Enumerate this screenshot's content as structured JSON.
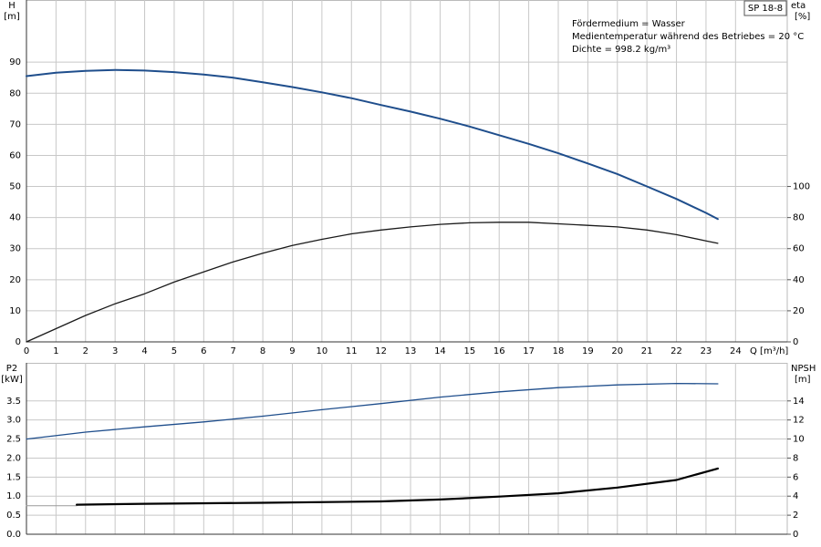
{
  "chart_data": [
    {
      "type": "line",
      "tag": "SP 18-8",
      "annotations": [
        "Fördermedium = Wasser",
        "Medientemperatur während des Betriebes = 20 °C",
        "Dichte = 998.2 kg/m³"
      ],
      "y_label": "H",
      "y_unit": "[m]",
      "y2_label": "eta",
      "y2_unit": "[%]",
      "x_label": "Q [m³/h]",
      "xlim": [
        0,
        25.75
      ],
      "xticks": [
        0,
        1,
        2,
        3,
        4,
        5,
        6,
        7,
        8,
        9,
        10,
        11,
        12,
        13,
        14,
        15,
        16,
        17,
        18,
        19,
        20,
        21,
        22,
        23,
        24
      ],
      "ylim": [
        0,
        110
      ],
      "yticks": [
        0,
        10,
        20,
        30,
        40,
        50,
        60,
        70,
        80,
        90
      ],
      "y2lim": [
        0,
        220
      ],
      "y2ticks": [
        0,
        20,
        40,
        60,
        80,
        100
      ],
      "grid": true,
      "xtick_labels": true,
      "series": [
        {
          "color": "#1f4e8c",
          "width": 2,
          "x": [
            0,
            1,
            2,
            3,
            4,
            5,
            6,
            7,
            8,
            9,
            10,
            11,
            12,
            13,
            14,
            15,
            16,
            17,
            18,
            19,
            20,
            21,
            22,
            23,
            23.4
          ],
          "values": [
            85.5,
            86.6,
            87.2,
            87.5,
            87.3,
            86.8,
            86,
            85,
            83.5,
            82,
            80.3,
            78.4,
            76.2,
            74.1,
            71.8,
            69.3,
            66.5,
            63.7,
            60.7,
            57.4,
            54,
            50,
            46,
            41.5,
            39.5
          ]
        },
        {
          "color": "#1a1a1a",
          "width": 1.3,
          "axis": "y2",
          "x": [
            0,
            1,
            2,
            3,
            4,
            5,
            6,
            7,
            8,
            9,
            10,
            11,
            12,
            13,
            14,
            15,
            16,
            17,
            18,
            19,
            20,
            21,
            22,
            23,
            23.4
          ],
          "values": [
            0,
            8.5,
            17,
            24.5,
            31,
            38.5,
            45,
            51.5,
            57,
            62,
            66,
            69.5,
            72,
            74,
            75.6,
            76.6,
            77,
            77,
            76,
            75,
            74,
            72,
            69,
            65,
            63.4
          ]
        }
      ]
    },
    {
      "type": "line",
      "y_label": "P2",
      "y_unit": "[kW]",
      "y2_label": "NPSH",
      "y2_unit": "[m]",
      "xlim": [
        0,
        25.75
      ],
      "xticks": [
        0,
        1,
        2,
        3,
        4,
        5,
        6,
        7,
        8,
        9,
        10,
        11,
        12,
        13,
        14,
        15,
        16,
        17,
        18,
        19,
        20,
        21,
        22,
        23,
        24
      ],
      "ylim": [
        0,
        4.5
      ],
      "yticks": [
        {
          "value": 0,
          "label": "0.0"
        },
        0.5,
        {
          "value": 1,
          "label": "1.0"
        },
        1.5,
        {
          "value": 2,
          "label": "2.0"
        },
        2.5,
        {
          "value": 3,
          "label": "3.0"
        },
        3.5
      ],
      "y2lim": [
        0,
        18
      ],
      "y2ticks": [
        0,
        2,
        4,
        6,
        8,
        10,
        12,
        14
      ],
      "grid": true,
      "xtick_labels": false,
      "series": [
        {
          "color": "#1f4e8c",
          "width": 1.3,
          "x": [
            0,
            2,
            4,
            6,
            8,
            10,
            12,
            14,
            16,
            18,
            20,
            22,
            23.4
          ],
          "values": [
            2.5,
            2.68,
            2.82,
            2.95,
            3.1,
            3.27,
            3.43,
            3.6,
            3.74,
            3.85,
            3.92,
            3.96,
            3.95
          ]
        },
        {
          "color": "#999999",
          "width": 1,
          "axis": "y2",
          "x": [
            0,
            1.7
          ],
          "values": [
            3.0,
            3.0
          ]
        },
        {
          "color": "#000000",
          "width": 2.2,
          "axis": "y2",
          "x": [
            1.7,
            4,
            8,
            12,
            14,
            16,
            18,
            20,
            22,
            23.4
          ],
          "values": [
            3.1,
            3.2,
            3.3,
            3.45,
            3.65,
            3.95,
            4.3,
            4.9,
            5.7,
            6.9
          ]
        }
      ]
    }
  ]
}
